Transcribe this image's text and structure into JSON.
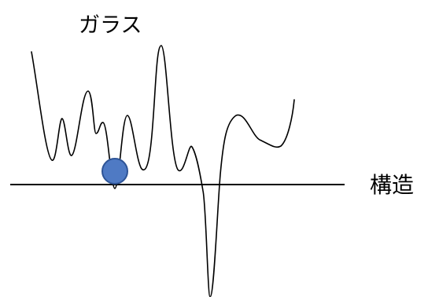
{
  "title": "ガラス",
  "axis_label": "構造",
  "colors": {
    "curve": "#000000",
    "axis": "#000000",
    "marker_fill": "#4f7ac4",
    "marker_stroke": "#2e5496"
  }
}
